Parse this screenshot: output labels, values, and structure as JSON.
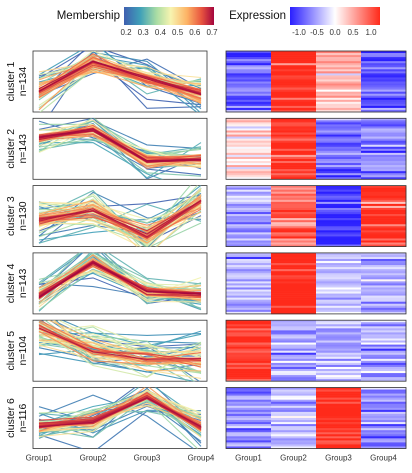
{
  "legend": {
    "membership_title": "Membership",
    "membership_ticks": [
      "0.2",
      "0.3",
      "0.4",
      "0.5",
      "0.6",
      "0.7"
    ],
    "membership_range": [
      0.2,
      0.7
    ],
    "expression_title": "Expression",
    "expression_ticks": [
      "-1.0",
      "-0.5",
      "0.0",
      "0.5",
      "1.0"
    ],
    "expression_range": [
      -1.25,
      1.25
    ]
  },
  "chart_data": [
    {
      "type": "line",
      "title": "",
      "panel": "mfuzz-style cluster profiles",
      "categories": [
        "Group1",
        "Group2",
        "Group3",
        "Group4"
      ],
      "color_scale": "Spectral (reversed) by membership",
      "clusters": [
        {
          "label": "cluster 1",
          "n_label": "n=134",
          "core": [
            -0.7,
            1.4,
            0.2,
            -0.9
          ],
          "spread": 0.45
        },
        {
          "label": "cluster 2",
          "n_label": "n=143",
          "core": [
            0.8,
            1.4,
            -0.9,
            -0.75
          ],
          "spread": 0.3
        },
        {
          "label": "cluster 3",
          "n_label": "n=130",
          "core": [
            -0.3,
            0.4,
            -1.4,
            1.1
          ],
          "spread": 0.5
        },
        {
          "label": "cluster 4",
          "n_label": "n=143",
          "core": [
            -0.9,
            1.5,
            -0.6,
            -0.8
          ],
          "spread": 0.35
        },
        {
          "label": "cluster 5",
          "n_label": "n=104",
          "core": [
            1.6,
            -0.1,
            -0.5,
            -0.6
          ],
          "spread": 0.5
        },
        {
          "label": "cluster 6",
          "n_label": "n=116",
          "core": [
            -0.6,
            -0.3,
            1.5,
            -0.7
          ],
          "spread": 0.4
        }
      ]
    },
    {
      "type": "heatmap",
      "title": "",
      "panel": "expression heatmap",
      "columns": [
        "Group1",
        "Group2",
        "Group3",
        "Group4"
      ],
      "color_scale": [
        "#2a1fff",
        "#ffffff",
        "#ff2a1a"
      ],
      "column_means_per_cluster": [
        [
          -0.7,
          1.0,
          0.35,
          -0.8
        ],
        [
          0.2,
          1.0,
          -0.6,
          -0.55
        ],
        [
          -0.4,
          0.7,
          -0.95,
          0.95
        ],
        [
          -0.4,
          1.2,
          -0.3,
          -0.4
        ],
        [
          1.0,
          -0.35,
          -0.35,
          -0.35
        ],
        [
          -0.5,
          -0.3,
          1.1,
          -0.45
        ]
      ]
    }
  ]
}
